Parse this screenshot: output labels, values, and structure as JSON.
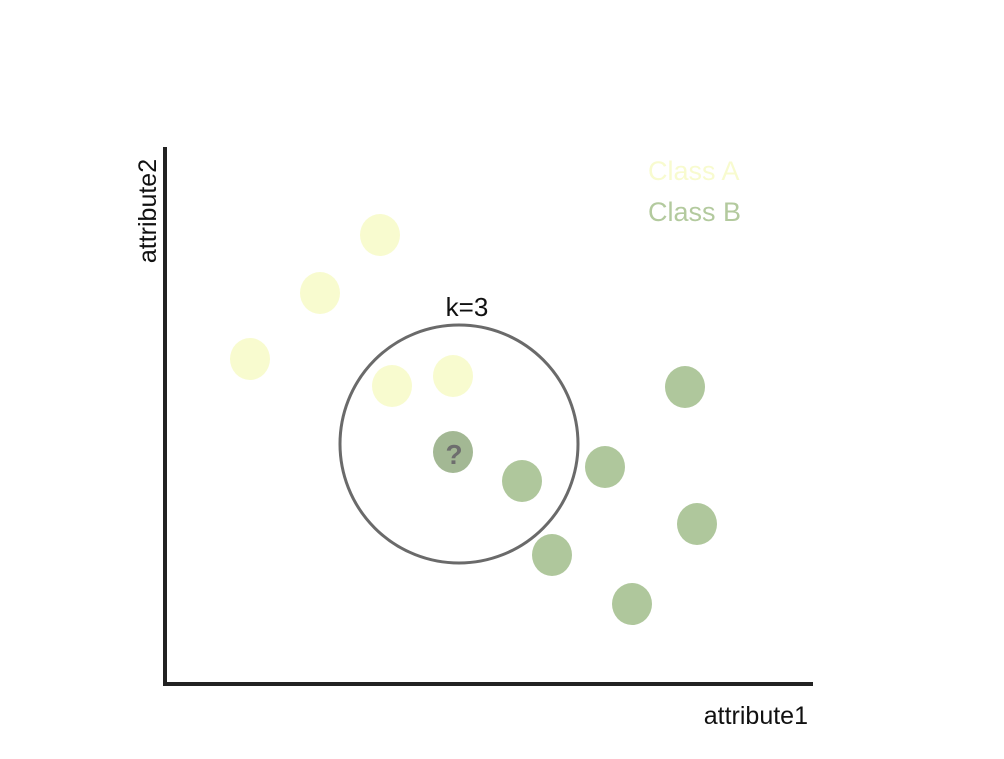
{
  "diagram": {
    "axes": {
      "xlabel": "attribute1",
      "ylabel": "attribute2"
    },
    "legend": {
      "items": [
        {
          "label": "Class A",
          "color": "#f8fbcf"
        },
        {
          "label": "Class B",
          "color": "#b3ca9e"
        }
      ]
    },
    "neighborhood": {
      "label": "k=3",
      "color": "#6a6a6a"
    },
    "query_point": {
      "label": "?",
      "color": "#a3b894"
    },
    "class_a_color": "#f8fbcf",
    "class_b_color": "#afc79c"
  }
}
